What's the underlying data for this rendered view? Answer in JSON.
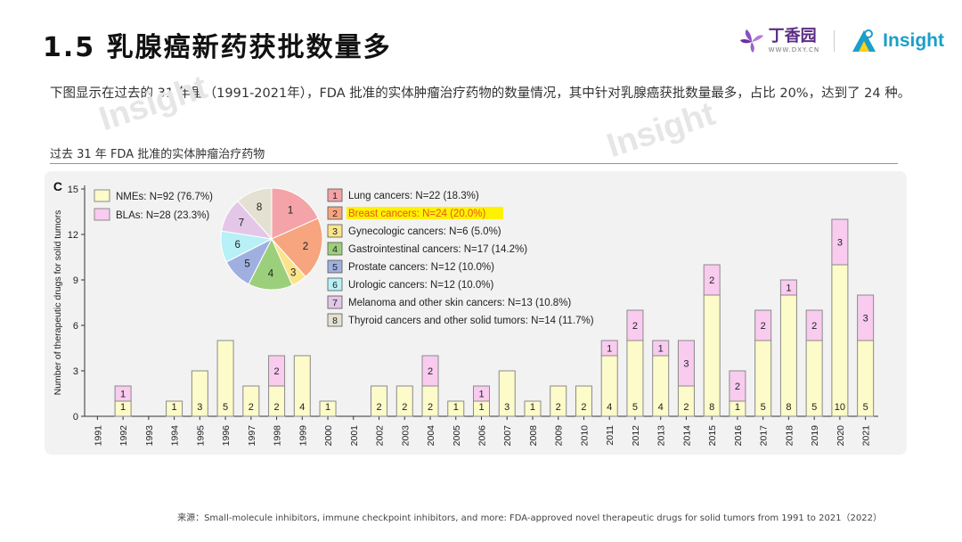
{
  "header": {
    "title": "1.5  乳腺癌新药获批数量多",
    "logo_dxy_name": "丁香园",
    "logo_dxy_url": "WWW.DXY.CN",
    "logo_insight": "Insight"
  },
  "description": "下图显示在过去的 31 年里（1991-2021年），FDA 批准的实体肿瘤治疗药物的数量情况，其中针对乳腺癌获批数量最多，占比 20%，达到了 24 种。",
  "chart_subtitle": "过去 31 年 FDA 批准的实体肿瘤治疗药物",
  "watermark": "Insight",
  "source": "来源：Small-molecule inhibitors, immune checkpoint inhibitors, and more: FDA-approved novel therapeutic drugs for solid tumors from 1991 to 2021（2022）",
  "colors": {
    "nme": "#fcfbc9",
    "bla": "#f9cbef",
    "bar_stroke": "#8a8a8a",
    "highlight": "#fff200",
    "accent_line": "#3ab8c8"
  },
  "chart_data": {
    "type": "bar",
    "panel_label": "C",
    "ylabel": "Number of therapeutic drugs for solid tumors",
    "ylim": [
      0,
      15
    ],
    "yticks": [
      0,
      3,
      6,
      9,
      12,
      15
    ],
    "categories": [
      "1991",
      "1992",
      "1993",
      "1994",
      "1995",
      "1996",
      "1997",
      "1998",
      "1999",
      "2000",
      "2001",
      "2002",
      "2003",
      "2004",
      "2005",
      "2006",
      "2007",
      "2008",
      "2009",
      "2010",
      "2011",
      "2012",
      "2013",
      "2014",
      "2015",
      "2016",
      "2017",
      "2018",
      "2019",
      "2020",
      "2021"
    ],
    "series": [
      {
        "name": "NMEs: N=92 (76.7%)",
        "color": "#fcfbc9",
        "values": [
          0,
          1,
          0,
          1,
          3,
          5,
          2,
          2,
          4,
          1,
          0,
          2,
          2,
          2,
          1,
          1,
          3,
          1,
          2,
          2,
          4,
          5,
          4,
          2,
          8,
          1,
          5,
          8,
          5,
          10,
          5
        ]
      },
      {
        "name": "BLAs: N=28 (23.3%)",
        "color": "#f9cbef",
        "values": [
          0,
          1,
          0,
          0,
          0,
          0,
          0,
          2,
          0,
          0,
          0,
          0,
          0,
          2,
          0,
          1,
          0,
          0,
          0,
          0,
          1,
          2,
          1,
          3,
          2,
          2,
          2,
          1,
          2,
          3,
          3
        ]
      }
    ],
    "pie": {
      "slices": [
        {
          "num": "1",
          "label": "Lung cancers: N=22 (18.3%)",
          "value": 22,
          "color": "#f4a3a8",
          "highlight": false
        },
        {
          "num": "2",
          "label": "Breast cancers: N=24 (20.0%)",
          "value": 24,
          "color": "#f6a57f",
          "highlight": true
        },
        {
          "num": "3",
          "label": "Gynecologic cancers: N=6 (5.0%)",
          "value": 6,
          "color": "#fbe38c",
          "highlight": false
        },
        {
          "num": "4",
          "label": "Gastrointestinal cancers: N=17 (14.2%)",
          "value": 17,
          "color": "#9ccf7b",
          "highlight": false
        },
        {
          "num": "5",
          "label": "Prostate cancers: N=12 (10.0%)",
          "value": 12,
          "color": "#9fb0e0",
          "highlight": false
        },
        {
          "num": "6",
          "label": "Urologic cancers: N=12 (10.0%)",
          "value": 12,
          "color": "#b8f0f7",
          "highlight": false
        },
        {
          "num": "7",
          "label": "Melanoma and other skin cancers: N=13 (10.8%)",
          "value": 13,
          "color": "#e3c6e8",
          "highlight": false
        },
        {
          "num": "8",
          "label": "Thyroid cancers and other solid tumors: N=14 (11.7%)",
          "value": 14,
          "color": "#e4e1d3",
          "highlight": false
        }
      ]
    }
  }
}
